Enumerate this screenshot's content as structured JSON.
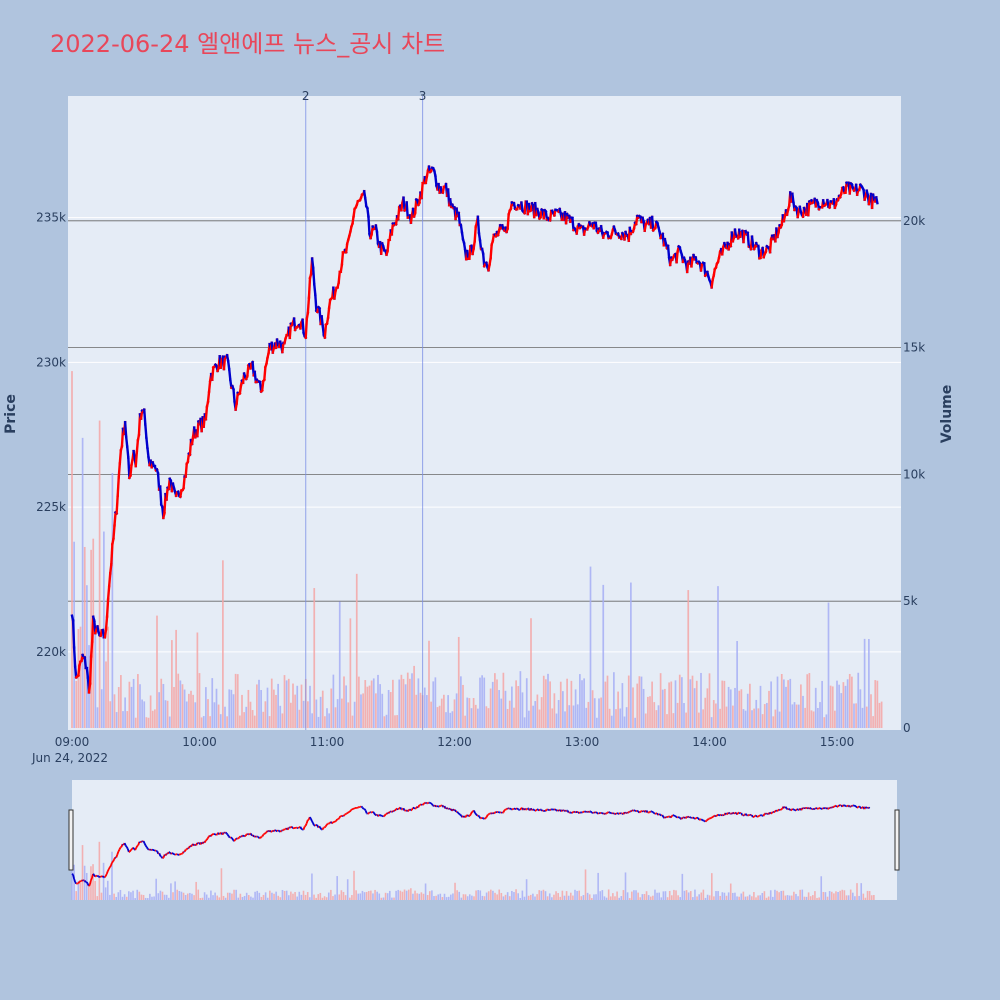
{
  "title": "2022-06-24 엘앤에프 뉴스_공시 차트",
  "colors": {
    "background": "#b0c4de",
    "plot_bg": "#e5ecf6",
    "up": "#ff0000",
    "down": "#0000cd",
    "title": "#e8475a"
  },
  "chart_data": {
    "type": "line",
    "date_label": "Jun 24, 2022",
    "y_title": "Price",
    "y2_title": "Volume",
    "price_ticks": [
      "220k",
      "225k",
      "230k",
      "235k"
    ],
    "price_tick_values": [
      220000,
      225000,
      230000,
      235000
    ],
    "volume_ticks": [
      "0",
      "5k",
      "10k",
      "15k",
      "20k"
    ],
    "volume_tick_values": [
      0,
      5000,
      10000,
      15000,
      20000
    ],
    "time_ticks": [
      "09:00",
      "10:00",
      "11:00",
      "12:00",
      "13:00",
      "14:00",
      "15:00"
    ],
    "price_range": [
      217300,
      239200
    ],
    "volume_range": [
      0,
      25000
    ],
    "time_range_minutes": [
      540,
      932
    ],
    "annotations": [
      {
        "label": "2",
        "time": "10:50"
      },
      {
        "label": "3",
        "time": "11:45"
      }
    ],
    "price_anchors": [
      [
        "09:00",
        221500
      ],
      [
        "09:02",
        219000
      ],
      [
        "09:05",
        219800
      ],
      [
        "09:07",
        219500
      ],
      [
        "09:08",
        218500
      ],
      [
        "09:10",
        221000
      ],
      [
        "09:13",
        220500
      ],
      [
        "09:16",
        220600
      ],
      [
        "09:17",
        222000
      ],
      [
        "09:19",
        223500
      ],
      [
        "09:21",
        225000
      ],
      [
        "09:23",
        227000
      ],
      [
        "09:25",
        228000
      ],
      [
        "09:27",
        226000
      ],
      [
        "09:29",
        227000
      ],
      [
        "09:30",
        226500
      ],
      [
        "09:32",
        228000
      ],
      [
        "09:34",
        228300
      ],
      [
        "09:36",
        226500
      ],
      [
        "09:39",
        226500
      ],
      [
        "09:41",
        225800
      ],
      [
        "09:43",
        224800
      ],
      [
        "09:46",
        226000
      ],
      [
        "09:49",
        225200
      ],
      [
        "09:53",
        226000
      ],
      [
        "09:57",
        227500
      ],
      [
        "10:00",
        227800
      ],
      [
        "10:03",
        228000
      ],
      [
        "10:05",
        229500
      ],
      [
        "10:09",
        230000
      ],
      [
        "10:13",
        230000
      ],
      [
        "10:17",
        228500
      ],
      [
        "10:21",
        229500
      ],
      [
        "10:25",
        229800
      ],
      [
        "10:29",
        229000
      ],
      [
        "10:33",
        230500
      ],
      [
        "10:37",
        230700
      ],
      [
        "10:40",
        230500
      ],
      [
        "10:43",
        231200
      ],
      [
        "10:47",
        231500
      ],
      [
        "10:50",
        231000
      ],
      [
        "10:53",
        233500
      ],
      [
        "10:55",
        232000
      ],
      [
        "10:57",
        231500
      ],
      [
        "10:59",
        231000
      ],
      [
        "11:01",
        232000
      ],
      [
        "11:04",
        232500
      ],
      [
        "11:07",
        233500
      ],
      [
        "11:10",
        234000
      ],
      [
        "11:13",
        235300
      ],
      [
        "11:15",
        235500
      ],
      [
        "11:18",
        235700
      ],
      [
        "11:20",
        234500
      ],
      [
        "11:23",
        234500
      ],
      [
        "11:25",
        234000
      ],
      [
        "11:28",
        233700
      ],
      [
        "11:31",
        234700
      ],
      [
        "11:33",
        235000
      ],
      [
        "11:36",
        235500
      ],
      [
        "11:40",
        235000
      ],
      [
        "11:44",
        235800
      ],
      [
        "11:47",
        236500
      ],
      [
        "11:50",
        236600
      ],
      [
        "11:53",
        236000
      ],
      [
        "11:56",
        236000
      ],
      [
        "11:59",
        235300
      ],
      [
        "12:02",
        235000
      ],
      [
        "12:05",
        233700
      ],
      [
        "12:08",
        233800
      ],
      [
        "12:11",
        234800
      ],
      [
        "12:14",
        233500
      ],
      [
        "12:16",
        233400
      ],
      [
        "12:18",
        234200
      ],
      [
        "12:21",
        234500
      ],
      [
        "12:24",
        234500
      ],
      [
        "12:27",
        235500
      ],
      [
        "12:30",
        235500
      ],
      [
        "12:33",
        235400
      ],
      [
        "12:36",
        235300
      ],
      [
        "12:40",
        235200
      ],
      [
        "12:44",
        235000
      ],
      [
        "12:48",
        235100
      ],
      [
        "12:52",
        235000
      ],
      [
        "12:56",
        234800
      ],
      [
        "13:00",
        234500
      ],
      [
        "13:05",
        234800
      ],
      [
        "13:10",
        234400
      ],
      [
        "13:14",
        234500
      ],
      [
        "13:18",
        234500
      ],
      [
        "13:22",
        234400
      ],
      [
        "13:26",
        235000
      ],
      [
        "13:30",
        234700
      ],
      [
        "13:34",
        234800
      ],
      [
        "13:38",
        234300
      ],
      [
        "13:42",
        233500
      ],
      [
        "13:46",
        233800
      ],
      [
        "13:50",
        233300
      ],
      [
        "13:54",
        233600
      ],
      [
        "13:58",
        233200
      ],
      [
        "14:01",
        232800
      ],
      [
        "14:04",
        233500
      ],
      [
        "14:08",
        234000
      ],
      [
        "14:12",
        234500
      ],
      [
        "14:16",
        234400
      ],
      [
        "14:20",
        234100
      ],
      [
        "14:24",
        233800
      ],
      [
        "14:28",
        233900
      ],
      [
        "14:32",
        234500
      ],
      [
        "14:35",
        234900
      ],
      [
        "14:38",
        235700
      ],
      [
        "14:42",
        235200
      ],
      [
        "14:46",
        235300
      ],
      [
        "14:50",
        235500
      ],
      [
        "14:54",
        235600
      ],
      [
        "14:58",
        235400
      ],
      [
        "15:02",
        235800
      ],
      [
        "15:05",
        236000
      ],
      [
        "15:08",
        235900
      ],
      [
        "15:11",
        236000
      ],
      [
        "15:14",
        235800
      ],
      [
        "15:16",
        235600
      ],
      [
        "15:19",
        235500
      ]
    ]
  }
}
